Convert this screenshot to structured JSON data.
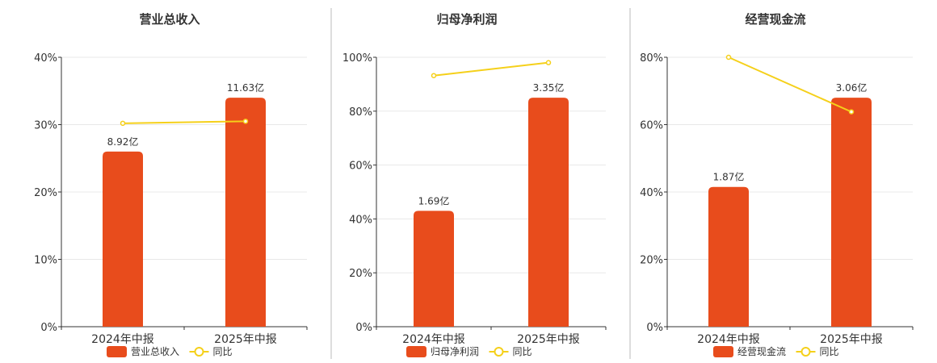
{
  "chart_data": [
    {
      "type": "bar",
      "title": "营业总收入",
      "categories": [
        "2024年中报",
        "2025年中报"
      ],
      "bar_labels": [
        "8.92亿",
        "11.63亿"
      ],
      "series": [
        {
          "name": "营业总收入",
          "kind": "bar",
          "values": [
            26,
            34
          ]
        },
        {
          "name": "同比",
          "kind": "line",
          "values": [
            30.2,
            30.5
          ]
        }
      ],
      "ylim": [
        0,
        40
      ],
      "yticks": [
        0,
        10,
        20,
        30,
        40
      ],
      "ytick_labels": [
        "0%",
        "10%",
        "20%",
        "30%",
        "40%"
      ],
      "grid": true,
      "legend": "bottom"
    },
    {
      "type": "bar",
      "title": "归母净利润",
      "categories": [
        "2024年中报",
        "2025年中报"
      ],
      "bar_labels": [
        "1.69亿",
        "3.35亿"
      ],
      "series": [
        {
          "name": "归母净利润",
          "kind": "bar",
          "values": [
            43,
            85
          ]
        },
        {
          "name": "同比",
          "kind": "line",
          "values": [
            93.2,
            98
          ]
        }
      ],
      "ylim": [
        0,
        100
      ],
      "yticks": [
        0,
        20,
        40,
        60,
        80,
        100
      ],
      "ytick_labels": [
        "0%",
        "20%",
        "40%",
        "60%",
        "80%",
        "100%"
      ],
      "grid": true,
      "legend": "bottom"
    },
    {
      "type": "bar",
      "title": "经营现金流",
      "categories": [
        "2024年中报",
        "2025年中报"
      ],
      "bar_labels": [
        "1.87亿",
        "3.06亿"
      ],
      "series": [
        {
          "name": "经营现金流",
          "kind": "bar",
          "values": [
            41.5,
            68
          ]
        },
        {
          "name": "同比",
          "kind": "line",
          "values": [
            80,
            63.8
          ]
        }
      ],
      "ylim": [
        0,
        80
      ],
      "yticks": [
        0,
        20,
        40,
        60,
        80
      ],
      "ytick_labels": [
        "0%",
        "20%",
        "40%",
        "60%",
        "80%"
      ],
      "grid": true,
      "legend": "bottom"
    }
  ],
  "colors": {
    "bar": "#e84c1c",
    "line": "#f5d01a",
    "grid": "#e8e8e8",
    "axis": "#333333",
    "divider": "#bbbbbb",
    "text": "#333333"
  }
}
